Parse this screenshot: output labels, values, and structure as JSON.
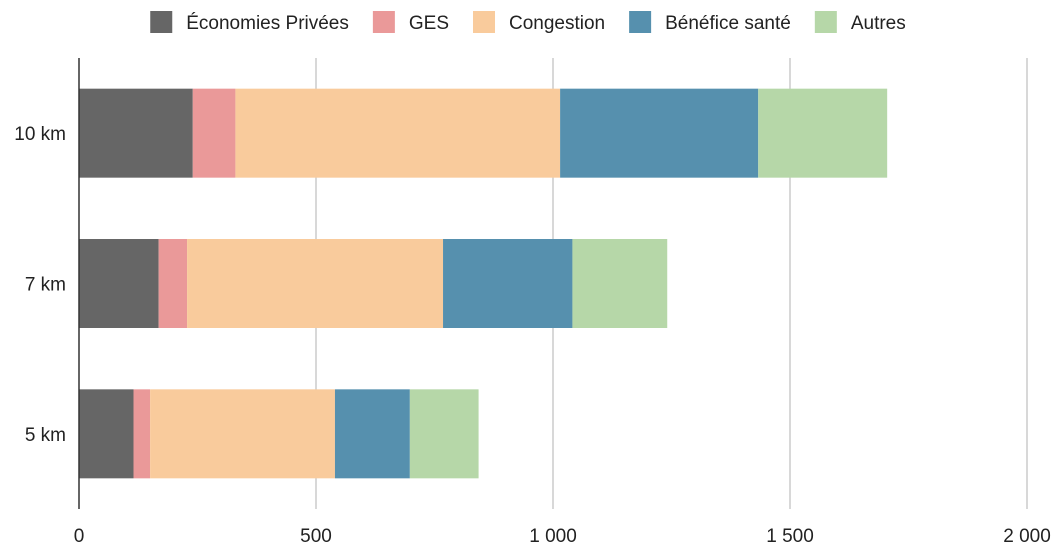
{
  "chart_data": {
    "type": "bar",
    "orientation": "horizontal",
    "stacked": true,
    "categories": [
      "10 km",
      "7 km",
      "5 km"
    ],
    "series": [
      {
        "name": "Économies Privées",
        "color": "#666666",
        "values": [
          240,
          168,
          115
        ]
      },
      {
        "name": "GES",
        "color": "#EA9999",
        "values": [
          90,
          60,
          35
        ]
      },
      {
        "name": "Congestion",
        "color": "#F9CB9C",
        "values": [
          685,
          540,
          390
        ]
      },
      {
        "name": "Bénéfice santé",
        "color": "#5690AE",
        "values": [
          418,
          273,
          158
        ]
      },
      {
        "name": "Autres",
        "color": "#B6D7A8",
        "values": [
          272,
          200,
          145
        ]
      }
    ],
    "xlim": [
      0,
      2000
    ],
    "xticks": [
      0,
      500,
      1000,
      1500,
      2000
    ],
    "xtick_labels": [
      "0",
      "500",
      "1 000",
      "1 500",
      "2 000"
    ],
    "grid": true,
    "legend_position": "top",
    "title": "",
    "xlabel": "",
    "ylabel": ""
  }
}
